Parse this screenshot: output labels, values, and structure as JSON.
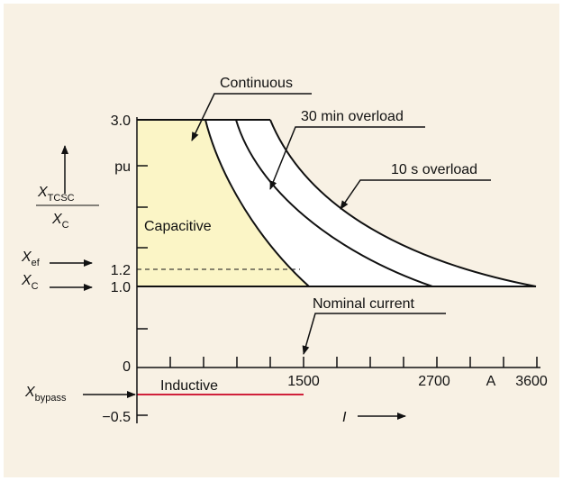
{
  "diagram": {
    "annotations": {
      "continuous": "Continuous",
      "overload_30min": "30 min overload",
      "overload_10s": "10 s overload",
      "capacitive": "Capacitive",
      "nominal_current": "Nominal current",
      "inductive": "Inductive"
    },
    "y_axis": {
      "labels": [
        "3.0",
        "pu",
        "1.2",
        "1.0",
        "0",
        "−0.5"
      ],
      "quantity": {
        "numerator": {
          "symbol": "X",
          "subscript": "TCSC"
        },
        "denominator": {
          "symbol": "X",
          "subscript": "C"
        }
      }
    },
    "x_axis": {
      "labels": [
        "1500",
        "2700",
        "A",
        "3600"
      ],
      "quantity": "I"
    },
    "markers": [
      {
        "symbol": "X",
        "subscript": "ef"
      },
      {
        "symbol": "X",
        "subscript": "C"
      },
      {
        "symbol": "X",
        "subscript": "bypass"
      }
    ]
  }
}
